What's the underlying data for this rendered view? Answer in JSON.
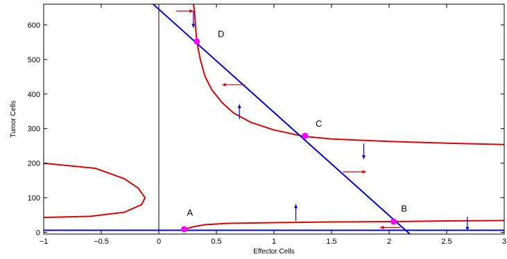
{
  "chart_data": {
    "type": "line",
    "title": "",
    "xlabel": "Effector Cells",
    "ylabel": "Tumor Cells",
    "xlim": [
      -1,
      3
    ],
    "ylim": [
      -5,
      660
    ],
    "grid": false,
    "xticks": [
      -1,
      -0.5,
      0,
      0.5,
      1,
      1.5,
      2,
      2.5,
      3
    ],
    "xtick_labels": [
      "−1",
      "−0.5",
      "0",
      "0.5",
      "1",
      "1.5",
      "2",
      "2.5",
      "3"
    ],
    "yticks": [
      0,
      100,
      200,
      300,
      400,
      500,
      600
    ],
    "ytick_labels": [
      "0",
      "100",
      "200",
      "300",
      "400",
      "500",
      "600"
    ],
    "colors": {
      "effector_nullcline": "#e00000",
      "tumor_nullcline": "#0000e0",
      "equilibrium": "#ff00ff",
      "axis_line": "#000000"
    },
    "series": [
      {
        "color": "#e00000",
        "points": [
          [
            0.3,
            660
          ],
          [
            0.31,
            640
          ],
          [
            0.32,
            590
          ],
          [
            0.33,
            552
          ],
          [
            0.36,
            500
          ],
          [
            0.4,
            452
          ],
          [
            0.46,
            412
          ],
          [
            0.55,
            375
          ],
          [
            0.65,
            345
          ],
          [
            0.8,
            318
          ],
          [
            1.0,
            296
          ],
          [
            1.25,
            278
          ],
          [
            1.5,
            270
          ],
          [
            2.0,
            263
          ],
          [
            2.5,
            258
          ],
          [
            3.0,
            254
          ]
        ]
      },
      {
        "color": "#e00000",
        "points": [
          [
            -1,
            200
          ],
          [
            -0.55,
            185
          ],
          [
            -0.3,
            155
          ],
          [
            -0.18,
            128
          ],
          [
            -0.12,
            100
          ],
          [
            -0.15,
            80
          ],
          [
            -0.3,
            58
          ],
          [
            -0.6,
            46
          ],
          [
            -1,
            43
          ]
        ]
      },
      {
        "color": "#e00000",
        "points": [
          [
            0.22,
            9
          ],
          [
            0.3,
            16
          ],
          [
            0.4,
            22
          ],
          [
            0.6,
            26
          ],
          [
            1.0,
            28
          ],
          [
            1.5,
            30
          ],
          [
            2.04,
            31
          ],
          [
            2.5,
            33
          ],
          [
            3.0,
            34
          ]
        ]
      },
      {
        "color": "#0000e0",
        "points": [
          [
            -0.1,
            675
          ],
          [
            2.18,
            -5
          ]
        ]
      },
      {
        "color": "#0000e0",
        "points": [
          [
            -1,
            6
          ],
          [
            3,
            6
          ]
        ]
      }
    ],
    "equilibria": [
      {
        "label": "A",
        "x": 0.22,
        "y": 9,
        "label_x": 0.27,
        "label_y": 48
      },
      {
        "label": "B",
        "x": 2.04,
        "y": 31,
        "label_x": 2.13,
        "label_y": 60
      },
      {
        "label": "C",
        "x": 1.27,
        "y": 279,
        "label_x": 1.39,
        "label_y": 305
      },
      {
        "label": "D",
        "x": 0.33,
        "y": 552,
        "label_x": 0.54,
        "label_y": 565
      }
    ],
    "arrows": [
      {
        "color": "#e00000",
        "from": [
          0.15,
          640
        ],
        "to": [
          0.3,
          640
        ]
      },
      {
        "color": "#0000e0",
        "from": [
          0.3,
          640
        ],
        "to": [
          0.3,
          592
        ]
      },
      {
        "color": "#e00000",
        "from": [
          0.75,
          427
        ],
        "to": [
          0.55,
          427
        ]
      },
      {
        "color": "#0000e0",
        "from": [
          0.7,
          327
        ],
        "to": [
          0.7,
          370
        ]
      },
      {
        "color": "#0000e0",
        "from": [
          1.78,
          257
        ],
        "to": [
          1.78,
          212
        ]
      },
      {
        "color": "#e00000",
        "from": [
          1.6,
          175
        ],
        "to": [
          1.8,
          175
        ]
      },
      {
        "color": "#0000e0",
        "from": [
          1.19,
          33
        ],
        "to": [
          1.19,
          81
        ]
      },
      {
        "color": "#e00000",
        "from": [
          2.1,
          14
        ],
        "to": [
          1.92,
          14
        ]
      },
      {
        "color": "#0000e0",
        "from": [
          2.68,
          45
        ],
        "to": [
          2.68,
          5
        ]
      }
    ]
  }
}
